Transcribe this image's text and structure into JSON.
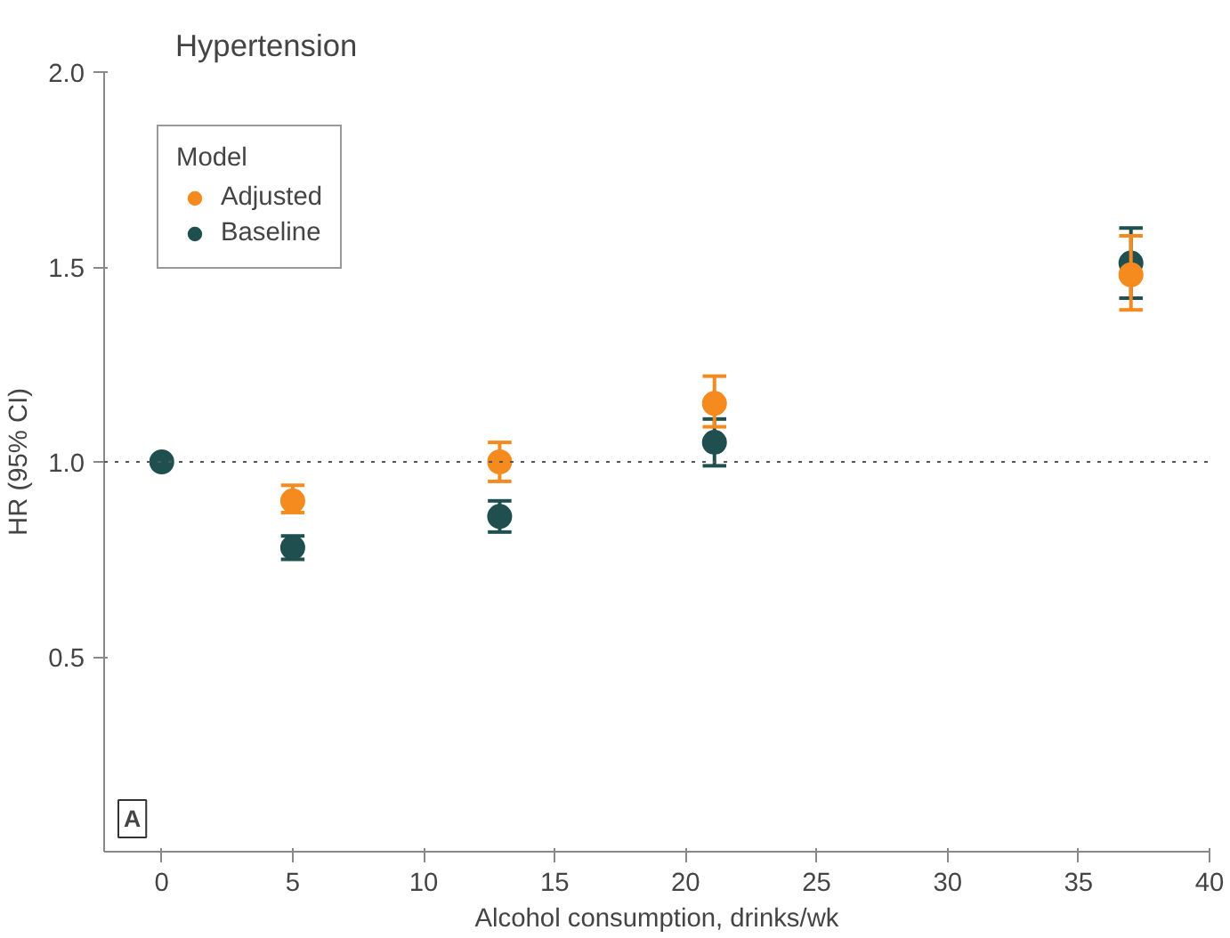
{
  "chart_data": {
    "type": "scatter",
    "title": "Hypertension",
    "annotations": [
      "A"
    ],
    "xlabel": "Alcohol consumption, drinks/wk",
    "ylabel": "HR (95% CI)",
    "legend_title": "Model",
    "legend": "top left",
    "grid": false,
    "marker": "circle",
    "xlim": [
      -2.2,
      40
    ],
    "xticks": [
      0,
      5,
      10,
      15,
      20,
      25,
      30,
      35,
      40
    ],
    "ylim": [
      0,
      2.0
    ],
    "yticks": [
      {
        "value": 0.5,
        "label": "0.5"
      },
      {
        "value": 1.0,
        "label": "1.0"
      },
      {
        "value": 1.5,
        "label": "1.5"
      },
      {
        "value": 2.0,
        "label": "2.0"
      }
    ],
    "ref_lines": [
      {
        "axis": "y",
        "value": 1.0,
        "label": null,
        "color": "#555555",
        "line_style": "dotted"
      }
    ],
    "series": [
      {
        "name": "Adjusted",
        "color": "#f58a1f",
        "x": [
          5,
          12.9,
          21.1,
          37
        ],
        "values": [
          0.9,
          1.0,
          1.15,
          1.48
        ],
        "errors": [
          [
            0.87,
            0.94
          ],
          [
            0.95,
            1.05
          ],
          [
            1.09,
            1.22
          ],
          [
            1.39,
            1.58
          ]
        ]
      },
      {
        "name": "Baseline",
        "color": "#1f4f4f",
        "x": [
          0,
          5,
          12.9,
          21.1,
          37
        ],
        "values": [
          1.0,
          0.78,
          0.86,
          1.05,
          1.51
        ],
        "errors": [
          null,
          [
            0.75,
            0.81
          ],
          [
            0.82,
            0.9
          ],
          [
            0.99,
            1.11
          ],
          [
            1.42,
            1.6
          ]
        ]
      }
    ]
  }
}
